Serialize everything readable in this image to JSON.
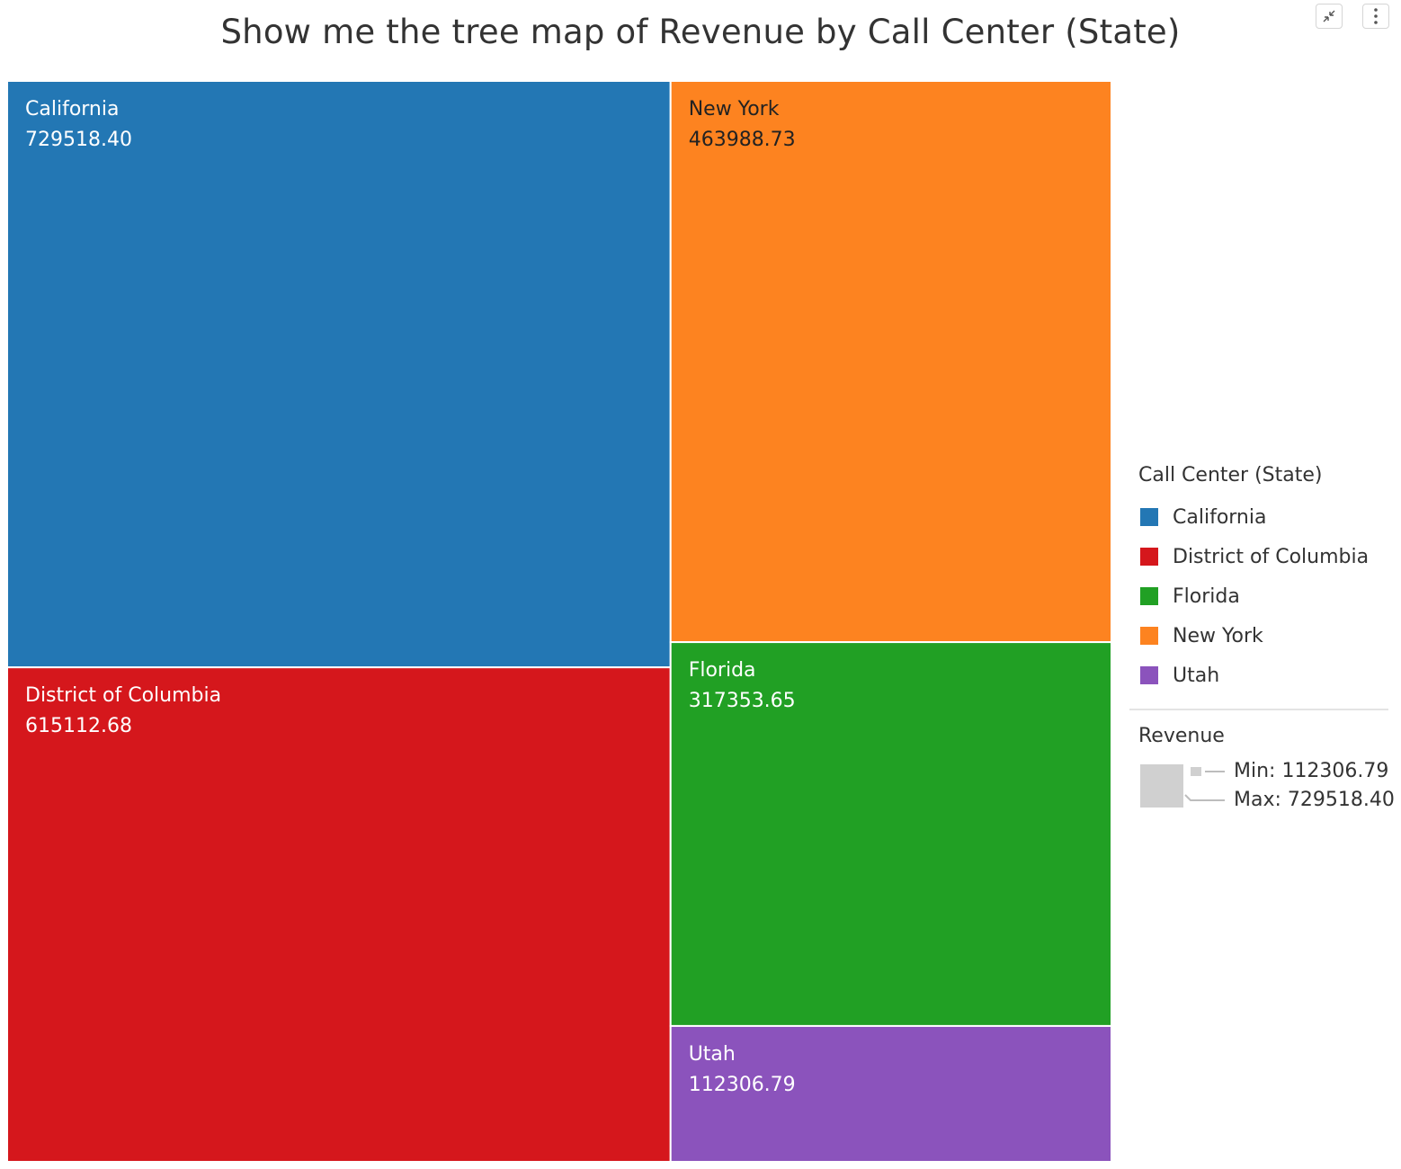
{
  "title": "Show me the tree map of Revenue by Call Center (State)",
  "toolbar": {
    "collapse_icon": "collapse-arrows-icon",
    "menu_icon": "more-vertical-icon"
  },
  "chart_data": {
    "type": "treemap",
    "title": "Show me the tree map of Revenue by Call Center (State)",
    "color_field": "Call Center (State)",
    "size_field": "Revenue",
    "categories": [
      "California",
      "District of Columbia",
      "Florida",
      "New York",
      "Utah"
    ],
    "values": [
      729518.4,
      615112.68,
      317353.65,
      463988.73,
      112306.79
    ],
    "labels": [
      "729518.40",
      "615112.68",
      "317353.65",
      "463988.73",
      "112306.79"
    ],
    "colors": [
      "#2377b4",
      "#d5171c",
      "#21a024",
      "#fd8320",
      "#8b53bc"
    ],
    "text_colors": [
      "#ffffff",
      "#ffffff",
      "#ffffff",
      "#222222",
      "#ffffff"
    ],
    "legend": {
      "title": "Call Center (State)",
      "items": [
        "California",
        "District of Columbia",
        "Florida",
        "New York",
        "Utah"
      ]
    },
    "size_legend": {
      "title": "Revenue",
      "min_label": "Min: 112306.79",
      "max_label": "Max: 729518.40",
      "min": 112306.79,
      "max": 729518.4
    }
  }
}
